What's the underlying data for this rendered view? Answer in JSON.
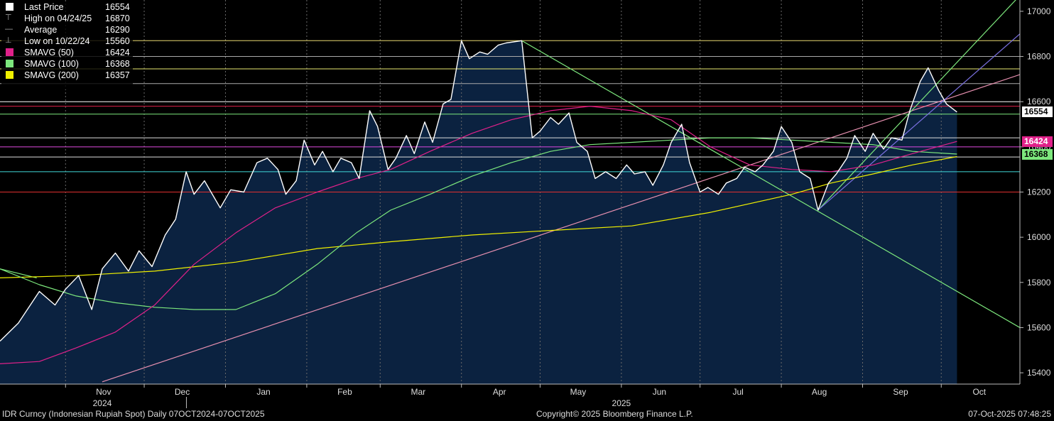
{
  "legend": {
    "items": [
      {
        "label": "Last Price",
        "value": "16554",
        "color": "#ffffff",
        "icon": "square"
      },
      {
        "label": "High on 04/24/25",
        "value": "16870",
        "color": "#aaaaaa",
        "icon": "high-marker"
      },
      {
        "label": "Average",
        "value": "16290",
        "color": "#aaaaaa",
        "icon": "average-marker"
      },
      {
        "label": "Low on 10/22/24",
        "value": "15560",
        "color": "#aaaaaa",
        "icon": "low-marker"
      },
      {
        "label": "SMAVG (50)",
        "value": "16424",
        "color": "#e0218a",
        "icon": "square"
      },
      {
        "label": "SMAVG (100)",
        "value": "16368",
        "color": "#7de87d",
        "icon": "square"
      },
      {
        "label": "SMAVG (200)",
        "value": "16357",
        "color": "#f0f000",
        "icon": "square"
      }
    ]
  },
  "footer": {
    "left": "IDR Curncy (Indonesian Rupiah Spot) Daily 07OCT2024-07OCT2025",
    "center": "Copyright© 2025 Bloomberg Finance L.P.",
    "right": "07-Oct-2025 07:48:25"
  },
  "value_tags": [
    {
      "text": "16554",
      "bg": "#ffffff",
      "fg": "#000000",
      "value": 16554
    },
    {
      "text": "16424",
      "bg": "#e0218a",
      "fg": "#ffffff",
      "value": 16424
    },
    {
      "text": "16368",
      "bg": "#7de87d",
      "fg": "#000000",
      "value": 16368
    }
  ],
  "chart_data": {
    "type": "area",
    "title": "",
    "xlabel": "",
    "ylabel": "",
    "ylim": [
      15350,
      17050
    ],
    "xlim": [
      "2024-10-07",
      "2025-10-31"
    ],
    "y_ticks": [
      15400,
      15600,
      15800,
      16000,
      16200,
      16400,
      16600,
      16800,
      17000
    ],
    "y_tick_labels": [
      "15400",
      "15600",
      "15800",
      "16000",
      "16200",
      "16400",
      "16600",
      "16800",
      "17000"
    ],
    "x_month_labels": [
      {
        "label": "Nov",
        "date": "2024-11-01"
      },
      {
        "label": "Dec",
        "date": "2024-12-01"
      },
      {
        "label": "Jan",
        "date": "2025-01-01"
      },
      {
        "label": "Feb",
        "date": "2025-02-01"
      },
      {
        "label": "Mar",
        "date": "2025-03-01"
      },
      {
        "label": "Apr",
        "date": "2025-04-01"
      },
      {
        "label": "May",
        "date": "2025-05-01"
      },
      {
        "label": "Jun",
        "date": "2025-06-01"
      },
      {
        "label": "Jul",
        "date": "2025-07-01"
      },
      {
        "label": "Aug",
        "date": "2025-08-01"
      },
      {
        "label": "Sep",
        "date": "2025-09-01"
      },
      {
        "label": "Oct",
        "date": "2025-10-01"
      }
    ],
    "x_year_labels": [
      {
        "label": "2024",
        "date": "2024-11-15"
      },
      {
        "label": "2025",
        "date": "2025-06-01"
      }
    ],
    "grid": "vertical-dashed",
    "legend_position": "top-left",
    "series": [
      {
        "name": "Last Price",
        "color": "#ffffff",
        "fill": "#0b2240",
        "points": [
          [
            "2024-10-07",
            15540
          ],
          [
            "2024-10-14",
            15620
          ],
          [
            "2024-10-22",
            15760
          ],
          [
            "2024-10-28",
            15700
          ],
          [
            "2024-11-01",
            15770
          ],
          [
            "2024-11-06",
            15830
          ],
          [
            "2024-11-11",
            15680
          ],
          [
            "2024-11-15",
            15860
          ],
          [
            "2024-11-20",
            15930
          ],
          [
            "2024-11-25",
            15850
          ],
          [
            "2024-11-29",
            15940
          ],
          [
            "2024-12-04",
            15870
          ],
          [
            "2024-12-09",
            16010
          ],
          [
            "2024-12-13",
            16080
          ],
          [
            "2024-12-17",
            16290
          ],
          [
            "2024-12-20",
            16190
          ],
          [
            "2024-12-24",
            16250
          ],
          [
            "2024-12-30",
            16130
          ],
          [
            "2025-01-03",
            16210
          ],
          [
            "2025-01-08",
            16200
          ],
          [
            "2025-01-13",
            16330
          ],
          [
            "2025-01-17",
            16350
          ],
          [
            "2025-01-21",
            16300
          ],
          [
            "2025-01-24",
            16190
          ],
          [
            "2025-01-28",
            16250
          ],
          [
            "2025-01-31",
            16430
          ],
          [
            "2025-02-04",
            16320
          ],
          [
            "2025-02-07",
            16380
          ],
          [
            "2025-02-11",
            16290
          ],
          [
            "2025-02-14",
            16350
          ],
          [
            "2025-02-18",
            16330
          ],
          [
            "2025-02-21",
            16260
          ],
          [
            "2025-02-25",
            16560
          ],
          [
            "2025-02-28",
            16490
          ],
          [
            "2025-03-04",
            16300
          ],
          [
            "2025-03-07",
            16350
          ],
          [
            "2025-03-11",
            16450
          ],
          [
            "2025-03-14",
            16370
          ],
          [
            "2025-03-18",
            16510
          ],
          [
            "2025-03-21",
            16420
          ],
          [
            "2025-03-25",
            16590
          ],
          [
            "2025-03-28",
            16610
          ],
          [
            "2025-04-01",
            16870
          ],
          [
            "2025-04-04",
            16790
          ],
          [
            "2025-04-08",
            16820
          ],
          [
            "2025-04-11",
            16810
          ],
          [
            "2025-04-15",
            16850
          ],
          [
            "2025-04-18",
            16860
          ],
          [
            "2025-04-24",
            16870
          ],
          [
            "2025-04-28",
            16440
          ],
          [
            "2025-05-01",
            16470
          ],
          [
            "2025-05-05",
            16530
          ],
          [
            "2025-05-08",
            16500
          ],
          [
            "2025-05-12",
            16550
          ],
          [
            "2025-05-15",
            16420
          ],
          [
            "2025-05-19",
            16380
          ],
          [
            "2025-05-22",
            16260
          ],
          [
            "2025-05-26",
            16290
          ],
          [
            "2025-05-30",
            16260
          ],
          [
            "2025-06-03",
            16320
          ],
          [
            "2025-06-06",
            16280
          ],
          [
            "2025-06-10",
            16290
          ],
          [
            "2025-06-13",
            16230
          ],
          [
            "2025-06-17",
            16320
          ],
          [
            "2025-06-20",
            16420
          ],
          [
            "2025-06-24",
            16500
          ],
          [
            "2025-06-27",
            16330
          ],
          [
            "2025-07-01",
            16200
          ],
          [
            "2025-07-04",
            16220
          ],
          [
            "2025-07-08",
            16190
          ],
          [
            "2025-07-11",
            16240
          ],
          [
            "2025-07-15",
            16260
          ],
          [
            "2025-07-18",
            16310
          ],
          [
            "2025-07-22",
            16290
          ],
          [
            "2025-07-25",
            16320
          ],
          [
            "2025-07-29",
            16380
          ],
          [
            "2025-08-01",
            16490
          ],
          [
            "2025-08-05",
            16420
          ],
          [
            "2025-08-08",
            16290
          ],
          [
            "2025-08-12",
            16260
          ],
          [
            "2025-08-15",
            16120
          ],
          [
            "2025-08-19",
            16240
          ],
          [
            "2025-08-22",
            16280
          ],
          [
            "2025-08-26",
            16350
          ],
          [
            "2025-08-29",
            16450
          ],
          [
            "2025-09-02",
            16380
          ],
          [
            "2025-09-05",
            16460
          ],
          [
            "2025-09-09",
            16390
          ],
          [
            "2025-09-12",
            16440
          ],
          [
            "2025-09-16",
            16430
          ],
          [
            "2025-09-19",
            16560
          ],
          [
            "2025-09-23",
            16690
          ],
          [
            "2025-09-26",
            16750
          ],
          [
            "2025-09-30",
            16650
          ],
          [
            "2025-10-03",
            16590
          ],
          [
            "2025-10-07",
            16554
          ]
        ]
      },
      {
        "name": "SMAVG (50)",
        "color": "#e0218a",
        "points": [
          [
            "2024-10-07",
            15440
          ],
          [
            "2024-10-22",
            15450
          ],
          [
            "2024-11-05",
            15510
          ],
          [
            "2024-11-20",
            15580
          ],
          [
            "2024-12-05",
            15700
          ],
          [
            "2024-12-20",
            15880
          ],
          [
            "2025-01-05",
            16020
          ],
          [
            "2025-01-20",
            16130
          ],
          [
            "2025-02-05",
            16200
          ],
          [
            "2025-02-20",
            16260
          ],
          [
            "2025-03-05",
            16300
          ],
          [
            "2025-03-20",
            16380
          ],
          [
            "2025-04-05",
            16460
          ],
          [
            "2025-04-20",
            16520
          ],
          [
            "2025-05-05",
            16560
          ],
          [
            "2025-05-20",
            16580
          ],
          [
            "2025-06-05",
            16560
          ],
          [
            "2025-06-20",
            16520
          ],
          [
            "2025-07-05",
            16400
          ],
          [
            "2025-07-20",
            16320
          ],
          [
            "2025-08-05",
            16300
          ],
          [
            "2025-08-20",
            16290
          ],
          [
            "2025-09-05",
            16320
          ],
          [
            "2025-09-20",
            16370
          ],
          [
            "2025-10-07",
            16424
          ]
        ]
      },
      {
        "name": "SMAVG (100)",
        "color": "#7de87d",
        "points": [
          [
            "2024-10-07",
            15860
          ],
          [
            "2024-10-22",
            15790
          ],
          [
            "2024-11-05",
            15740
          ],
          [
            "2024-11-20",
            15710
          ],
          [
            "2024-12-05",
            15690
          ],
          [
            "2024-12-20",
            15680
          ],
          [
            "2025-01-05",
            15680
          ],
          [
            "2025-01-20",
            15750
          ],
          [
            "2025-02-05",
            15880
          ],
          [
            "2025-02-20",
            16020
          ],
          [
            "2025-03-05",
            16120
          ],
          [
            "2025-03-20",
            16190
          ],
          [
            "2025-04-05",
            16270
          ],
          [
            "2025-04-20",
            16330
          ],
          [
            "2025-05-05",
            16380
          ],
          [
            "2025-05-20",
            16410
          ],
          [
            "2025-06-05",
            16420
          ],
          [
            "2025-06-20",
            16430
          ],
          [
            "2025-07-05",
            16440
          ],
          [
            "2025-07-20",
            16440
          ],
          [
            "2025-08-05",
            16430
          ],
          [
            "2025-08-20",
            16420
          ],
          [
            "2025-09-05",
            16410
          ],
          [
            "2025-09-20",
            16380
          ],
          [
            "2025-10-07",
            16368
          ]
        ]
      },
      {
        "name": "SMAVG (200)",
        "color": "#f0f000",
        "points": [
          [
            "2024-10-07",
            15820
          ],
          [
            "2024-11-05",
            15830
          ],
          [
            "2024-12-05",
            15850
          ],
          [
            "2025-01-05",
            15890
          ],
          [
            "2025-02-05",
            15950
          ],
          [
            "2025-03-05",
            15980
          ],
          [
            "2025-04-05",
            16010
          ],
          [
            "2025-05-05",
            16030
          ],
          [
            "2025-06-05",
            16050
          ],
          [
            "2025-07-05",
            16110
          ],
          [
            "2025-08-05",
            16190
          ],
          [
            "2025-08-20",
            16240
          ],
          [
            "2025-09-05",
            16280
          ],
          [
            "2025-09-20",
            16320
          ],
          [
            "2025-10-07",
            16357
          ]
        ]
      }
    ],
    "reference_lines": [
      {
        "value": 16870,
        "color": "#e8d870"
      },
      {
        "value": 16800,
        "color": "#aaaaaa"
      },
      {
        "value": 16745,
        "color": "#e8e870"
      },
      {
        "value": 16680,
        "color": "#aaaaaa"
      },
      {
        "value": 16600,
        "color": "#ffffff"
      },
      {
        "value": 16580,
        "color": "#e0214a"
      },
      {
        "value": 16545,
        "color": "#7de87d"
      },
      {
        "value": 16440,
        "color": "#dddddd"
      },
      {
        "value": 16400,
        "color": "#e04ae0"
      },
      {
        "value": 16355,
        "color": "#dddddd"
      },
      {
        "value": 16290,
        "color": "#40d8d8"
      },
      {
        "value": 16200,
        "color": "#e03030"
      }
    ],
    "trend_lines": [
      {
        "from": [
          "2024-11-15",
          15360
        ],
        "to": [
          "2025-10-31",
          16720
        ],
        "color": "#e890b0"
      },
      {
        "from": [
          "2024-10-07",
          15860
        ],
        "to": [
          "2024-10-21",
          15820
        ],
        "color": "#7de87d"
      },
      {
        "from": [
          "2025-04-24",
          16870
        ],
        "to": [
          "2025-10-31",
          15600
        ],
        "color": "#7de87d"
      },
      {
        "from": [
          "2025-08-15",
          16120
        ],
        "to": [
          "2025-10-31",
          17070
        ],
        "color": "#7de87d"
      },
      {
        "from": [
          "2025-08-15",
          16120
        ],
        "to": [
          "2025-10-31",
          16900
        ],
        "color": "#7a70e0"
      }
    ]
  }
}
